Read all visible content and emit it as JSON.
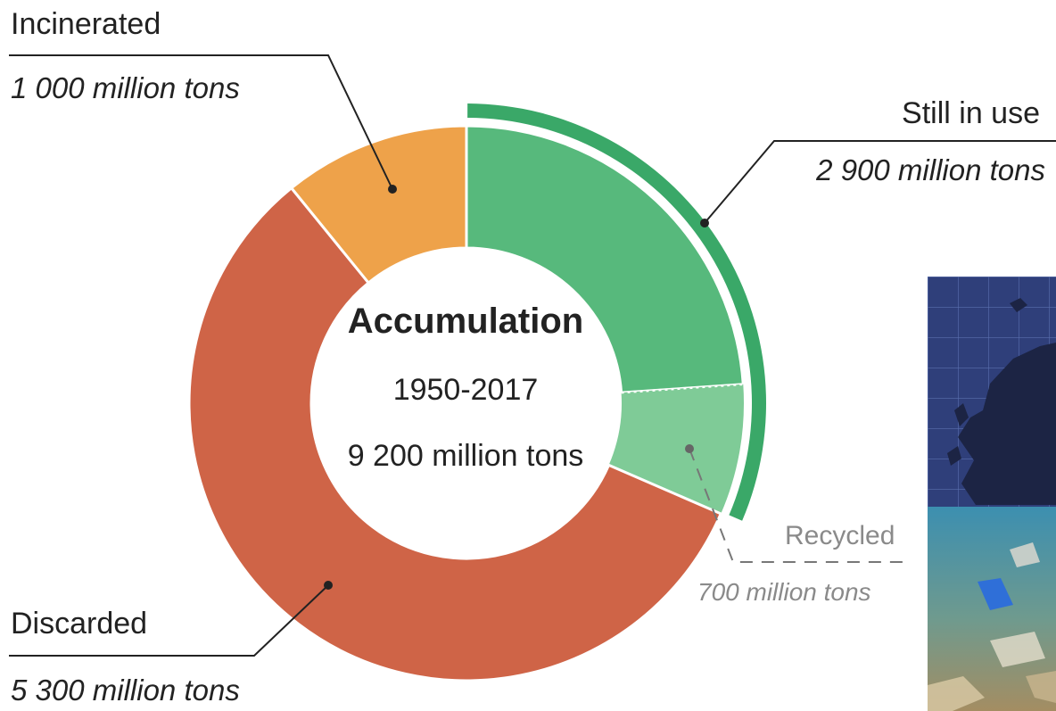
{
  "colors": {
    "still_in_use": "#57b97c",
    "recycled": "#7fcb97",
    "discarded": "#cf6447",
    "incinerated": "#eea24a",
    "outer_arc": "#3aa868",
    "text": "#222222",
    "muted_text": "#8a8a8a"
  },
  "chart_data": {
    "type": "pie",
    "variant": "donut",
    "title": "Accumulation",
    "subtitle": "1950-2017",
    "total_label": "9 200 million tons",
    "total": 9200,
    "unit": "million tons",
    "slices": [
      {
        "key": "still_in_use",
        "label": "Still in use",
        "value": 2200,
        "color": "#57b97c"
      },
      {
        "key": "recycled",
        "label": "Recycled",
        "value": 700,
        "color": "#7fcb97"
      },
      {
        "key": "discarded",
        "label": "Discarded",
        "value": 5300,
        "color": "#cf6447"
      },
      {
        "key": "incinerated",
        "label": "Incinerated",
        "value": 1000,
        "color": "#eea24a"
      }
    ],
    "annotations": [
      {
        "key": "incinerated",
        "label": "Incinerated",
        "value_text": "1 000 million tons"
      },
      {
        "key": "still_in_use",
        "label": "Still in use",
        "value_text": "2 900 million tons",
        "spans": [
          "still_in_use",
          "recycled"
        ]
      },
      {
        "key": "recycled",
        "label": "Recycled",
        "value_text": "700 million tons"
      },
      {
        "key": "discarded",
        "label": "Discarded",
        "value_text": "5 300  million tons"
      }
    ]
  },
  "images": {
    "map_icon": "europe-map-thumbnail",
    "seabed_icon": "seabed-plastic-waste-photo"
  }
}
